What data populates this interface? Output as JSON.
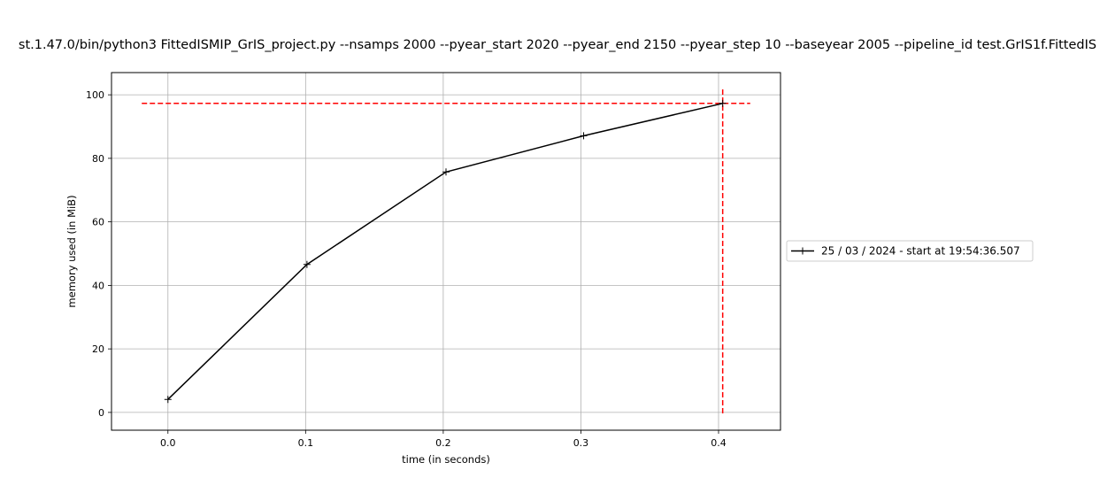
{
  "chart_data": {
    "type": "line",
    "title": "st.1.47.0/bin/python3 FittedISMIP_GrIS_project.py --nsamps 2000 --pyear_start 2020 --pyear_end 2150 --pyear_step 10 --baseyear 2005 --pipeline_id test.GrIS1f.FittedIS",
    "xlabel": "time (in seconds)",
    "ylabel": "memory used (in MiB)",
    "xlim": [
      -0.041,
      0.445
    ],
    "ylim": [
      -5.6,
      107
    ],
    "xticks": [
      0.0,
      0.1,
      0.2,
      0.3,
      0.4
    ],
    "xtick_labels": [
      "0.0",
      "0.1",
      "0.2",
      "0.3",
      "0.4"
    ],
    "yticks": [
      0,
      20,
      40,
      60,
      80,
      100
    ],
    "ytick_labels": [
      "0",
      "20",
      "40",
      "60",
      "80",
      "100"
    ],
    "grid": true,
    "legend_position": "center-right-outside",
    "series": [
      {
        "name": "25 / 03 / 2024 - start at 19:54:36.507",
        "color": "#000000",
        "marker": "+",
        "x": [
          0.0,
          0.101,
          0.202,
          0.302,
          0.403
        ],
        "y": [
          4.1,
          46.6,
          75.7,
          87.1,
          97.3
        ]
      }
    ],
    "reference_lines": [
      {
        "orientation": "horizontal",
        "value": 97.3,
        "from": -0.019,
        "to": 0.423,
        "color": "#ff0000",
        "style": "dashed"
      },
      {
        "orientation": "vertical",
        "value": 0.403,
        "from": -0.3,
        "to": 102,
        "color": "#ff0000",
        "style": "dashed"
      }
    ]
  }
}
